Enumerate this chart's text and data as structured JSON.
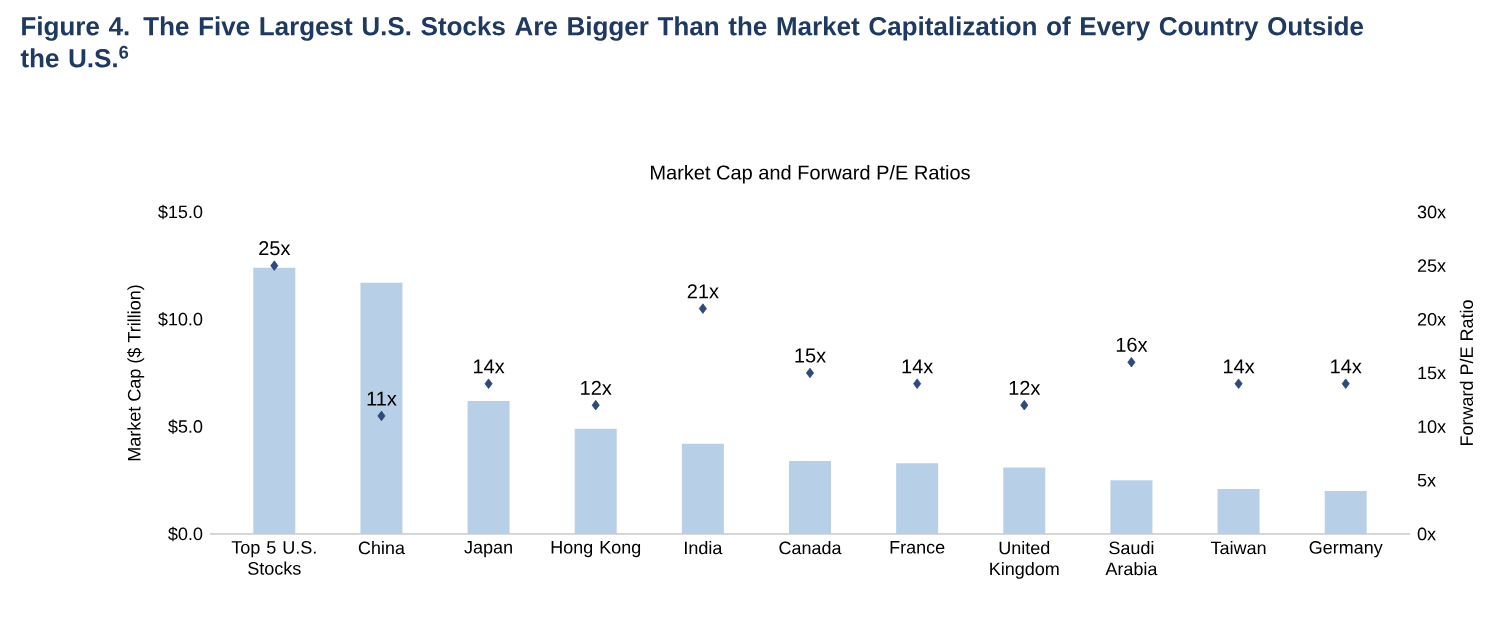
{
  "chart_data": {
    "type": "bar",
    "title": "Figure 4. The Five Largest U.S. Stocks Are Bigger Than the Market Capitalization of Every Country Outside the U.S.$^{6}$",
    "subtitle": "Market Cap and Forward P/E Ratios",
    "ylabel": "Market Cap ($ Trillion)",
    "y2label": "Forward P/E Ratio",
    "categories": [
      "Top 5 U.S. Stocks",
      "China",
      "Japan",
      "Hong Kong",
      "India",
      "Canada",
      "France",
      "United Kingdom",
      "Saudi Arabia",
      "Taiwan",
      "Germany"
    ],
    "series": [
      {
        "color": "#b8cfe8",
        "values": [
          12.4,
          11.7,
          6.2,
          4.9,
          4.2,
          3.4,
          3.3,
          3.1,
          2.5,
          2.1,
          2.0
        ]
      },
      {
        "type": "scatter",
        "axis": "y2",
        "marker": "diamond",
        "color": "#2e4a7a",
        "values": [
          25,
          11,
          14,
          12,
          21,
          15,
          14,
          12,
          16,
          14,
          14
        ],
        "value_labels": [
          "25x",
          "11x",
          "14x",
          "12x",
          "21x",
          "15x",
          "14x",
          "12x",
          "16x",
          "14x",
          "14x"
        ]
      }
    ],
    "ylim": [
      0,
      15
    ],
    "yticks": [
      {
        "value": 0,
        "label": "$0.0"
      },
      {
        "value": 5,
        "label": "$5.0"
      },
      {
        "value": 10,
        "label": "$10.0"
      },
      {
        "value": 15,
        "label": "$15.0"
      }
    ],
    "y2lim": [
      0,
      30
    ],
    "y2ticks": [
      {
        "value": 0,
        "label": "0x"
      },
      {
        "value": 5,
        "label": "5x"
      },
      {
        "value": 10,
        "label": "10x"
      },
      {
        "value": 15,
        "label": "15x"
      },
      {
        "value": 20,
        "label": "20x"
      },
      {
        "value": 25,
        "label": "25x"
      },
      {
        "value": 30,
        "label": "30x"
      }
    ]
  }
}
